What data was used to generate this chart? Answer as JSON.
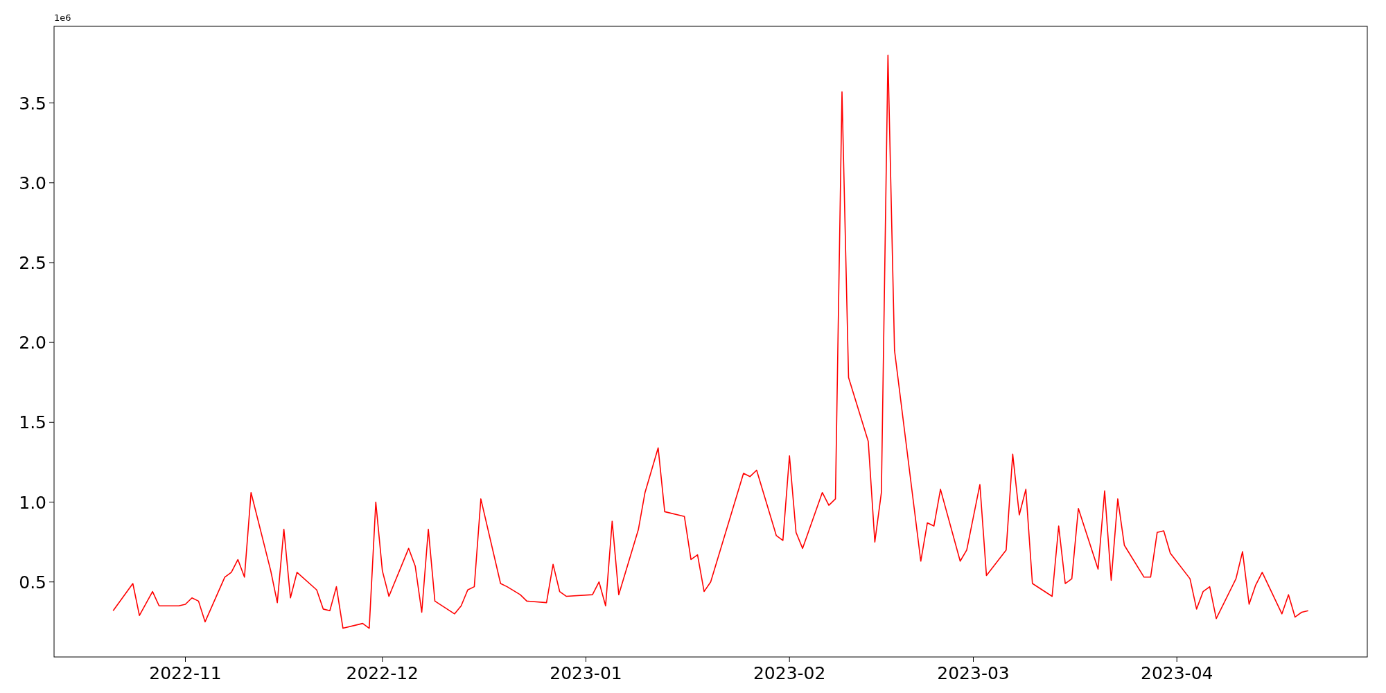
{
  "chart_data": {
    "type": "line",
    "annotations": [
      "1e6"
    ],
    "x": [
      "2022-10-21",
      "2022-10-24",
      "2022-10-25",
      "2022-10-27",
      "2022-10-28",
      "2022-10-31",
      "2022-11-01",
      "2022-11-02",
      "2022-11-03",
      "2022-11-04",
      "2022-11-07",
      "2022-11-08",
      "2022-11-09",
      "2022-11-10",
      "2022-11-11",
      "2022-11-14",
      "2022-11-15",
      "2022-11-16",
      "2022-11-17",
      "2022-11-18",
      "2022-11-21",
      "2022-11-22",
      "2022-11-23",
      "2022-11-24",
      "2022-11-25",
      "2022-11-28",
      "2022-11-29",
      "2022-11-30",
      "2022-12-01",
      "2022-12-02",
      "2022-12-05",
      "2022-12-06",
      "2022-12-07",
      "2022-12-08",
      "2022-12-09",
      "2022-12-12",
      "2022-12-13",
      "2022-12-14",
      "2022-12-15",
      "2022-12-16",
      "2022-12-19",
      "2022-12-20",
      "2022-12-22",
      "2022-12-23",
      "2022-12-26",
      "2022-12-27",
      "2022-12-28",
      "2022-12-29",
      "2023-01-02",
      "2023-01-03",
      "2023-01-04",
      "2023-01-05",
      "2023-01-06",
      "2023-01-09",
      "2023-01-10",
      "2023-01-12",
      "2023-01-13",
      "2023-01-16",
      "2023-01-17",
      "2023-01-18",
      "2023-01-19",
      "2023-01-20",
      "2023-01-25",
      "2023-01-26",
      "2023-01-27",
      "2023-01-30",
      "2023-01-31",
      "2023-02-01",
      "2023-02-02",
      "2023-02-03",
      "2023-02-06",
      "2023-02-07",
      "2023-02-08",
      "2023-02-09",
      "2023-02-10",
      "2023-02-13",
      "2023-02-14",
      "2023-02-15",
      "2023-02-16",
      "2023-02-17",
      "2023-02-20",
      "2023-02-21",
      "2023-02-22",
      "2023-02-23",
      "2023-02-24",
      "2023-02-27",
      "2023-02-28",
      "2023-03-02",
      "2023-03-03",
      "2023-03-06",
      "2023-03-07",
      "2023-03-08",
      "2023-03-09",
      "2023-03-10",
      "2023-03-13",
      "2023-03-14",
      "2023-03-15",
      "2023-03-16",
      "2023-03-17",
      "2023-03-20",
      "2023-03-21",
      "2023-03-22",
      "2023-03-23",
      "2023-03-24",
      "2023-03-27",
      "2023-03-28",
      "2023-03-29",
      "2023-03-30",
      "2023-03-31",
      "2023-04-03",
      "2023-04-04",
      "2023-04-05",
      "2023-04-06",
      "2023-04-07",
      "2023-04-10",
      "2023-04-11",
      "2023-04-12",
      "2023-04-13",
      "2023-04-14",
      "2023-04-17",
      "2023-04-18",
      "2023-04-19",
      "2023-04-20",
      "2023-04-21"
    ],
    "series": [
      {
        "color": "#ff0000",
        "values": [
          0.32,
          0.49,
          0.29,
          0.44,
          0.35,
          0.35,
          0.36,
          0.4,
          0.38,
          0.25,
          0.53,
          0.56,
          0.64,
          0.53,
          1.06,
          0.57,
          0.37,
          0.83,
          0.4,
          0.56,
          0.45,
          0.33,
          0.32,
          0.47,
          0.21,
          0.24,
          0.21,
          1.0,
          0.57,
          0.41,
          0.71,
          0.6,
          0.31,
          0.83,
          0.38,
          0.3,
          0.35,
          0.45,
          0.47,
          1.02,
          0.49,
          0.47,
          0.42,
          0.38,
          0.37,
          0.61,
          0.44,
          0.41,
          0.42,
          0.5,
          0.35,
          0.88,
          0.42,
          0.83,
          1.06,
          1.34,
          0.94,
          0.91,
          0.64,
          0.67,
          0.44,
          0.5,
          1.18,
          1.16,
          1.2,
          0.79,
          0.76,
          1.29,
          0.81,
          0.71,
          1.06,
          0.98,
          1.02,
          3.57,
          1.78,
          1.38,
          0.75,
          1.06,
          3.8,
          1.95,
          0.96,
          0.63,
          0.87,
          0.85,
          1.08,
          0.63,
          0.7,
          1.11,
          0.54,
          0.7,
          1.3,
          0.92,
          1.08,
          0.49,
          0.41,
          0.85,
          0.49,
          0.52,
          0.96,
          0.58,
          1.07,
          0.51,
          1.02,
          0.73,
          0.53,
          0.53,
          0.81,
          0.82,
          0.68,
          0.52,
          0.33,
          0.44,
          0.47,
          0.27,
          0.52,
          0.69,
          0.36,
          0.48,
          0.56,
          0.3,
          0.42,
          0.28,
          0.31,
          0.32
        ]
      }
    ],
    "xlim": [
      "2022-10-12",
      "2023-04-30"
    ],
    "xticks": [
      {
        "value": "2022-11-01",
        "label": "2022-11"
      },
      {
        "value": "2022-12-01",
        "label": "2022-12"
      },
      {
        "value": "2023-01-01",
        "label": "2023-01"
      },
      {
        "value": "2023-02-01",
        "label": "2023-02"
      },
      {
        "value": "2023-03-01",
        "label": "2023-03"
      },
      {
        "value": "2023-04-01",
        "label": "2023-04"
      }
    ],
    "ylim": [
      0.03,
      3.98
    ],
    "yticks": [
      {
        "value": 0.5,
        "label": "0.5"
      },
      {
        "value": 1.0,
        "label": "1.0"
      },
      {
        "value": 1.5,
        "label": "1.5"
      },
      {
        "value": 2.0,
        "label": "2.0"
      },
      {
        "value": 2.5,
        "label": "2.5"
      },
      {
        "value": 3.0,
        "label": "3.0"
      },
      {
        "value": 3.5,
        "label": "3.5"
      }
    ],
    "grid": false,
    "line_style": "solid"
  }
}
